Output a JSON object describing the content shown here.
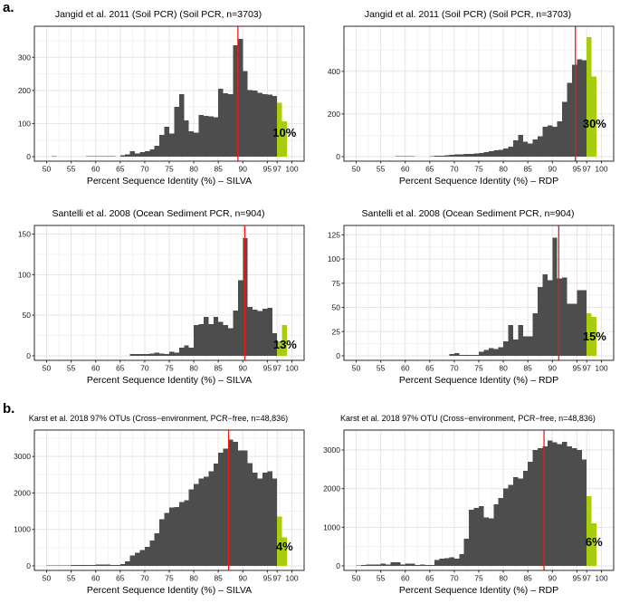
{
  "figure": {
    "section_a_label": "a.",
    "section_b_label": "b.",
    "colors": {
      "bar_grey": "#4d4d4d",
      "bar_green": "#a8cc0e",
      "red_line": "#fb1412",
      "grid_major": "#e5e5e5",
      "grid_minor": "#f3f3f3",
      "panel_border": "#2b2b2b",
      "tick_text": "#1a1a1a"
    }
  },
  "chart_data": [
    {
      "type": "bar",
      "title": "Jangid et al. 2011 (Soil PCR) (Soil PCR, n=3703)",
      "xlabel": "Percent Sequence Identity (%) – SILVA",
      "x_ticks": [
        50,
        55,
        60,
        65,
        70,
        75,
        80,
        85,
        90,
        95,
        97,
        100
      ],
      "y_ticks": [
        0,
        100,
        200,
        300
      ],
      "ymax": 380,
      "xlim": [
        47.5,
        102.5
      ],
      "bin_start": 50,
      "bin_width": 1,
      "values": [
        0,
        2,
        0,
        0,
        0,
        0,
        0,
        0,
        2,
        2,
        2,
        2,
        2,
        2,
        0,
        4,
        7,
        16,
        9,
        13,
        16,
        22,
        33,
        65,
        90,
        70,
        150,
        188,
        110,
        76,
        73,
        126,
        123,
        121,
        119,
        205,
        191,
        189,
        336,
        356,
        258,
        201,
        199,
        193,
        189,
        187,
        183,
        162,
        107,
        0
      ],
      "green_from": 97,
      "red_line_x": 89.0,
      "pct_label": "10%",
      "pct_label_x": 98.5,
      "pct_label_y": 60
    },
    {
      "type": "bar",
      "title": "Jangid et al. 2011 (Soil PCR) (Soil PCR, n=3703)",
      "xlabel": "Percent Sequence Identity (%) – RDP",
      "x_ticks": [
        50,
        55,
        60,
        65,
        70,
        75,
        80,
        85,
        90,
        95,
        97,
        100
      ],
      "y_ticks": [
        0,
        200,
        400
      ],
      "ymax": 590,
      "xlim": [
        47.5,
        102.5
      ],
      "bin_start": 50,
      "bin_width": 1,
      "values": [
        0,
        0,
        0,
        0,
        0,
        0,
        0,
        0,
        3,
        3,
        3,
        2,
        0,
        0,
        0,
        3,
        4,
        5,
        6,
        8,
        10,
        10,
        12,
        13,
        15,
        18,
        22,
        26,
        30,
        31,
        39,
        46,
        76,
        101,
        70,
        62,
        81,
        95,
        141,
        146,
        140,
        166,
        256,
        345,
        430,
        456,
        452,
        560,
        376,
        0
      ],
      "green_from": 97,
      "red_line_x": 94.7,
      "pct_label": "30%",
      "pct_label_x": 98.6,
      "pct_label_y": 135
    },
    {
      "type": "bar",
      "title": "Santelli et al. 2008 (Ocean Sediment PCR, n=904)",
      "xlabel": "Percent Sequence Identity (%) – SILVA",
      "x_ticks": [
        50,
        55,
        60,
        65,
        70,
        75,
        80,
        85,
        90,
        95,
        97,
        100
      ],
      "y_ticks": [
        0,
        50,
        100,
        150
      ],
      "ymax": 155,
      "xlim": [
        47.5,
        102.5
      ],
      "bin_start": 50,
      "bin_width": 1,
      "values": [
        0,
        0,
        0,
        0,
        0,
        0,
        0,
        0,
        0,
        0,
        0,
        0,
        0,
        0,
        0,
        0,
        0,
        2,
        2,
        2,
        2,
        3,
        4,
        3,
        2,
        5,
        4,
        10,
        13,
        10,
        38,
        39,
        48,
        39,
        48,
        42,
        38,
        34,
        56,
        93,
        145,
        60,
        57,
        55,
        58,
        59,
        28,
        18,
        38,
        0
      ],
      "green_from": 97,
      "red_line_x": 90.4,
      "pct_label": "13%",
      "pct_label_x": 98.6,
      "pct_label_y": 9
    },
    {
      "type": "bar",
      "title": "Santelli et al. 2008 (Ocean Sediment PCR, n=904)",
      "xlabel": "Percent Sequence Identity (%) – RDP",
      "x_ticks": [
        50,
        55,
        60,
        65,
        70,
        75,
        80,
        85,
        90,
        95,
        97,
        100
      ],
      "y_ticks": [
        0,
        25,
        50,
        75,
        100,
        125
      ],
      "ymax": 130,
      "xlim": [
        47.5,
        102.5
      ],
      "bin_start": 50,
      "bin_width": 1,
      "values": [
        0,
        0,
        0,
        0,
        0,
        0,
        0,
        0,
        0,
        0,
        0,
        0,
        0,
        0,
        0,
        0,
        0,
        0,
        0,
        2,
        3,
        1,
        1,
        1,
        1,
        4,
        6,
        8,
        7,
        9,
        15,
        32,
        17,
        32,
        20,
        20,
        44,
        71,
        84,
        78,
        122,
        80,
        81,
        54,
        54,
        68,
        68,
        44,
        40,
        0
      ],
      "green_from": 97,
      "red_line_x": 91.3,
      "pct_label": "15%",
      "pct_label_x": 98.6,
      "pct_label_y": 16
    },
    {
      "type": "bar",
      "title": "Karst et al. 2018 97% OTUs (Cross−environment, PCR−free, n=48,836)",
      "xlabel": "Percent Sequence Identity (%) – SILVA",
      "x_ticks": [
        50,
        55,
        60,
        65,
        70,
        75,
        80,
        85,
        90,
        95,
        97,
        100
      ],
      "y_ticks": [
        0,
        1000,
        2000,
        3000
      ],
      "ymax": 3600,
      "xlim": [
        47.5,
        102.5
      ],
      "bin_start": 50,
      "bin_width": 1,
      "values": [
        15,
        15,
        15,
        18,
        18,
        20,
        22,
        25,
        28,
        30,
        38,
        38,
        32,
        30,
        28,
        55,
        120,
        290,
        360,
        430,
        520,
        700,
        900,
        1280,
        1450,
        1600,
        1620,
        1750,
        1800,
        2100,
        2250,
        2400,
        2450,
        2600,
        2800,
        3100,
        3220,
        3460,
        3400,
        3160,
        3160,
        2820,
        2560,
        2400,
        2560,
        2600,
        2400,
        1350,
        780,
        0
      ],
      "green_from": 97,
      "red_line_x": 87.1,
      "pct_label": "4%",
      "pct_label_x": 98.5,
      "pct_label_y": 420
    },
    {
      "type": "bar",
      "title": "Karst et al. 2018 97% OTU (Cross−environment, PCR−free, n=48,836)",
      "xlabel": "Percent Sequence Identity (%) – RDP",
      "x_ticks": [
        50,
        55,
        60,
        65,
        70,
        75,
        80,
        85,
        90,
        95,
        97,
        100
      ],
      "y_ticks": [
        0,
        1000,
        2000,
        3000
      ],
      "ymax": 3400,
      "xlim": [
        47.5,
        102.5
      ],
      "bin_start": 50,
      "bin_width": 1,
      "values": [
        10,
        25,
        30,
        30,
        30,
        55,
        40,
        90,
        90,
        40,
        60,
        60,
        20,
        35,
        20,
        25,
        150,
        185,
        205,
        220,
        185,
        300,
        700,
        1450,
        1500,
        1550,
        1260,
        1230,
        1600,
        1760,
        2000,
        2100,
        2300,
        2260,
        2460,
        2700,
        3000,
        3050,
        3100,
        3250,
        3200,
        3150,
        3210,
        3100,
        3050,
        3000,
        2760,
        1800,
        1100,
        0
      ],
      "green_from": 97,
      "red_line_x": 88.3,
      "pct_label": "6%",
      "pct_label_x": 98.5,
      "pct_label_y": 520
    }
  ]
}
